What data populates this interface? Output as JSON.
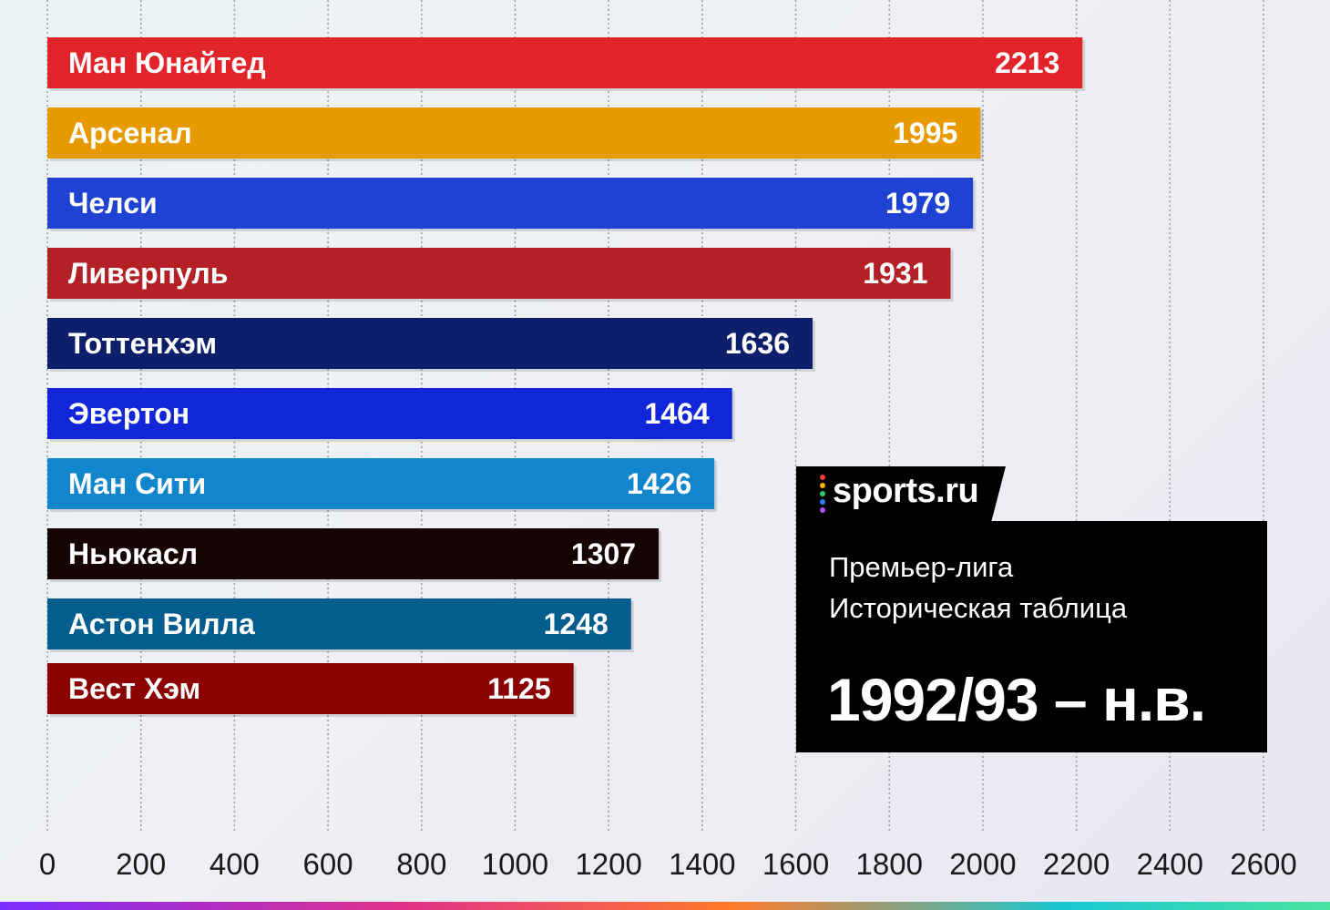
{
  "chart_data": {
    "type": "bar",
    "orientation": "horizontal",
    "categories": [
      "Ман Юнайтед",
      "Арсенал",
      "Челси",
      "Ливерпуль",
      "Тоттенхэм",
      "Эвертон",
      "Ман Сити",
      "Ньюкасл",
      "Астон Вилла",
      "Вест Хэм"
    ],
    "values": [
      2213,
      1995,
      1979,
      1931,
      1636,
      1464,
      1426,
      1307,
      1248,
      1125
    ],
    "bar_colors": [
      "#e1242a",
      "#e69a00",
      "#1f42d2",
      "#b32026",
      "#0d1f6b",
      "#1125d9",
      "#1286cc",
      "#150305",
      "#035d8e",
      "#8b0101"
    ],
    "xlim": [
      0,
      2600
    ],
    "xticks": [
      "0",
      "200",
      "400",
      "600",
      "800",
      "1000",
      "1200",
      "1400",
      "1600",
      "1800",
      "2000",
      "2200",
      "2400",
      "2600"
    ],
    "grid": "vertical-dotted",
    "title": "",
    "xlabel": "",
    "ylabel": ""
  },
  "info_box": {
    "logo": "sports.ru",
    "logo_dot_colors": [
      "#ff3b3b",
      "#ffb300",
      "#2ecc71",
      "#2f80ff",
      "#b44dff"
    ],
    "line1": "Премьер-лига",
    "line2": "Историческая таблица",
    "period": "1992/93 – н.в."
  },
  "colors": {
    "box_background": "#000000",
    "text": "#ffffff"
  }
}
